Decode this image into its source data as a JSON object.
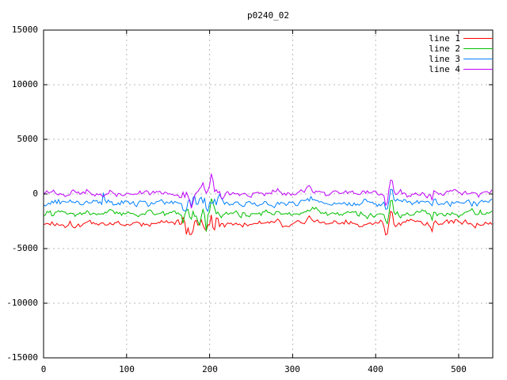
{
  "title": "p0240_02",
  "colors": {
    "background": "#ffffff",
    "border": "#000000",
    "grid": "#b8b8b8",
    "text": "#000000"
  },
  "chart_data": {
    "type": "line",
    "title": "p0240_02",
    "xlabel": "",
    "ylabel": "",
    "xlim": [
      0,
      541
    ],
    "ylim": [
      -15000,
      15000
    ],
    "xticks": [
      0,
      100,
      200,
      300,
      400,
      500
    ],
    "xtick_labels": [
      "0",
      "100",
      "200",
      "300",
      "400",
      "500"
    ],
    "yticks": [
      15000,
      10000,
      5000,
      0,
      -5000,
      -10000,
      -15000
    ],
    "ytick_labels": [
      "15000",
      "10000",
      "5000",
      "0",
      "-5000",
      "-10000",
      "-15000"
    ],
    "grid": "dashed",
    "legend_position": "top-right-inside",
    "legend": [
      "line 1",
      "line 2",
      "line 3",
      "line 4"
    ],
    "x_step": 2,
    "noise_seed": 1337,
    "noise": {
      "sigma": 160,
      "persistence": 0.5
    },
    "series": [
      {
        "name": "line 1",
        "color": "#ff0000",
        "baseline": -2700
      },
      {
        "name": "line 2",
        "color": "#00c000",
        "baseline": -1780
      },
      {
        "name": "line 3",
        "color": "#0080ff",
        "baseline": -830
      },
      {
        "name": "line 4",
        "color": "#c000ff",
        "baseline": 60
      }
    ],
    "events": [
      {
        "series": "all",
        "type": "turbulence",
        "x_start": 168,
        "x_end": 214,
        "gain": 3.0
      },
      {
        "series": 2,
        "type": "spike",
        "x": 72,
        "amplitude": 900,
        "width": 1.2
      },
      {
        "series": "all",
        "type": "spike",
        "x": 178,
        "amplitude": -700,
        "width": 2.0
      },
      {
        "series": "all",
        "type": "spike",
        "x": 196,
        "amplitude": -1000,
        "width": 2.2
      },
      {
        "series": "all",
        "type": "spike",
        "x": 202,
        "amplitude": 1100,
        "width": 2.5
      },
      {
        "series": "all",
        "type": "bump",
        "x": 322,
        "amplitude": 420,
        "width": 10
      },
      {
        "series": "all",
        "type": "spike",
        "x": 413,
        "amplitude": -1100,
        "width": 1.6
      },
      {
        "series": "all",
        "type": "spike",
        "x": 419,
        "amplitude": 1500,
        "width": 2.0
      },
      {
        "series": "all",
        "type": "spike",
        "x": 468,
        "amplitude": -550,
        "width": 1.4
      },
      {
        "series": "all",
        "type": "spike",
        "x": 471,
        "amplitude": 450,
        "width": 1.4
      }
    ]
  }
}
